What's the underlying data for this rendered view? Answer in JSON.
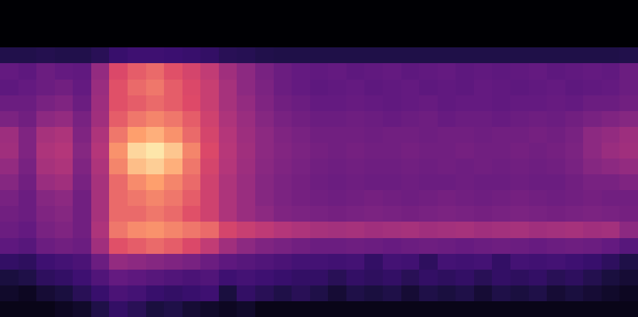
{
  "chart_data": {
    "type": "heatmap",
    "color": "magma",
    "zlim": [
      0,
      100
    ],
    "tick_labels": false,
    "grid": false,
    "cells": [
      [
        0,
        0,
        0,
        0,
        0,
        0,
        0,
        0,
        0,
        0,
        0,
        0,
        0,
        0,
        0,
        0,
        0,
        0,
        0,
        0,
        0,
        0,
        0,
        0,
        0,
        0,
        0,
        0,
        0,
        0,
        0,
        0,
        0,
        0,
        0
      ],
      [
        0,
        0,
        0,
        0,
        0,
        0,
        0,
        0,
        0,
        0,
        0,
        0,
        0,
        0,
        0,
        0,
        0,
        0,
        0,
        0,
        0,
        0,
        0,
        0,
        0,
        0,
        0,
        0,
        0,
        0,
        0,
        0,
        0,
        0,
        0
      ],
      [
        0,
        0,
        0,
        0,
        0,
        0,
        0,
        0,
        0,
        0,
        0,
        0,
        0,
        0,
        0,
        0,
        0,
        0,
        0,
        0,
        0,
        0,
        0,
        0,
        0,
        0,
        0,
        0,
        0,
        0,
        0,
        0,
        0,
        0,
        0
      ],
      [
        15,
        15,
        16,
        15,
        15,
        18,
        24,
        26,
        26,
        25,
        24,
        22,
        18,
        17,
        15,
        14,
        14,
        14,
        14,
        14,
        14,
        14,
        14,
        14,
        14,
        14,
        14,
        14,
        14,
        14,
        14,
        14,
        14,
        14,
        15
      ],
      [
        38,
        36,
        40,
        38,
        37,
        52,
        74,
        78,
        80,
        76,
        72,
        66,
        56,
        50,
        44,
        40,
        38,
        37,
        38,
        36,
        37,
        38,
        36,
        37,
        38,
        36,
        37,
        36,
        37,
        38,
        36,
        37,
        38,
        37,
        40
      ],
      [
        36,
        38,
        40,
        42,
        38,
        54,
        76,
        80,
        82,
        78,
        74,
        68,
        58,
        50,
        45,
        40,
        38,
        36,
        37,
        38,
        36,
        37,
        38,
        36,
        37,
        36,
        38,
        37,
        36,
        37,
        38,
        36,
        37,
        38,
        40
      ],
      [
        40,
        40,
        44,
        46,
        40,
        55,
        76,
        78,
        80,
        78,
        75,
        68,
        58,
        52,
        46,
        42,
        40,
        38,
        38,
        39,
        38,
        37,
        38,
        39,
        37,
        38,
        38,
        37,
        38,
        38,
        39,
        38,
        40,
        40,
        42
      ],
      [
        45,
        42,
        50,
        52,
        44,
        56,
        78,
        82,
        84,
        82,
        78,
        70,
        60,
        54,
        48,
        44,
        42,
        40,
        40,
        41,
        40,
        39,
        40,
        41,
        39,
        40,
        40,
        39,
        40,
        41,
        40,
        42,
        44,
        46,
        48
      ],
      [
        55,
        46,
        58,
        60,
        46,
        60,
        82,
        88,
        90,
        86,
        80,
        72,
        62,
        55,
        50,
        46,
        44,
        42,
        42,
        42,
        41,
        42,
        42,
        41,
        42,
        42,
        41,
        42,
        42,
        43,
        42,
        44,
        50,
        52,
        55
      ],
      [
        56,
        46,
        60,
        62,
        48,
        62,
        86,
        95,
        97,
        93,
        84,
        74,
        63,
        56,
        50,
        47,
        45,
        43,
        42,
        43,
        42,
        42,
        43,
        42,
        42,
        43,
        42,
        42,
        43,
        42,
        43,
        45,
        50,
        54,
        56
      ],
      [
        52,
        44,
        58,
        60,
        46,
        60,
        84,
        92,
        94,
        90,
        82,
        72,
        62,
        55,
        49,
        46,
        44,
        42,
        41,
        42,
        41,
        41,
        42,
        41,
        42,
        41,
        42,
        41,
        42,
        41,
        42,
        44,
        48,
        50,
        52
      ],
      [
        48,
        42,
        54,
        56,
        44,
        58,
        80,
        85,
        88,
        84,
        80,
        70,
        60,
        54,
        48,
        45,
        43,
        41,
        40,
        41,
        40,
        40,
        41,
        40,
        40,
        41,
        40,
        40,
        41,
        40,
        40,
        42,
        44,
        44,
        46
      ],
      [
        44,
        40,
        48,
        50,
        42,
        58,
        80,
        82,
        84,
        82,
        78,
        70,
        60,
        54,
        48,
        45,
        43,
        42,
        41,
        42,
        43,
        42,
        41,
        42,
        43,
        42,
        41,
        42,
        43,
        42,
        41,
        42,
        43,
        42,
        42
      ],
      [
        42,
        40,
        46,
        48,
        42,
        58,
        80,
        80,
        82,
        80,
        76,
        70,
        60,
        54,
        50,
        46,
        45,
        44,
        43,
        44,
        45,
        44,
        43,
        44,
        45,
        44,
        43,
        44,
        45,
        44,
        43,
        44,
        45,
        44,
        43
      ],
      [
        40,
        38,
        44,
        46,
        42,
        60,
        82,
        85,
        86,
        84,
        82,
        80,
        72,
        68,
        65,
        62,
        60,
        58,
        57,
        58,
        56,
        57,
        58,
        56,
        57,
        58,
        56,
        57,
        58,
        56,
        57,
        58,
        56,
        57,
        50
      ],
      [
        36,
        34,
        40,
        42,
        40,
        56,
        76,
        78,
        80,
        78,
        74,
        66,
        56,
        50,
        46,
        44,
        42,
        40,
        40,
        41,
        40,
        39,
        40,
        41,
        40,
        39,
        40,
        41,
        40,
        39,
        40,
        41,
        40,
        38,
        34
      ],
      [
        22,
        20,
        26,
        28,
        30,
        40,
        52,
        50,
        48,
        46,
        44,
        40,
        36,
        34,
        32,
        30,
        28,
        28,
        27,
        28,
        22,
        28,
        27,
        20,
        28,
        27,
        28,
        22,
        28,
        27,
        28,
        26,
        24,
        20,
        14
      ],
      [
        12,
        14,
        20,
        22,
        26,
        32,
        38,
        36,
        34,
        32,
        30,
        32,
        26,
        28,
        26,
        24,
        22,
        22,
        18,
        22,
        20,
        22,
        18,
        22,
        20,
        22,
        18,
        22,
        20,
        22,
        18,
        20,
        16,
        12,
        10
      ],
      [
        8,
        6,
        10,
        12,
        18,
        24,
        30,
        28,
        24,
        22,
        24,
        26,
        12,
        22,
        18,
        14,
        18,
        14,
        10,
        14,
        12,
        14,
        10,
        14,
        12,
        14,
        10,
        14,
        12,
        14,
        10,
        12,
        10,
        8,
        6
      ],
      [
        4,
        4,
        4,
        6,
        8,
        14,
        22,
        18,
        12,
        14,
        10,
        8,
        6,
        8,
        4,
        4,
        4,
        4,
        4,
        4,
        4,
        4,
        4,
        4,
        4,
        4,
        4,
        4,
        4,
        4,
        4,
        4,
        4,
        4,
        4
      ]
    ]
  }
}
